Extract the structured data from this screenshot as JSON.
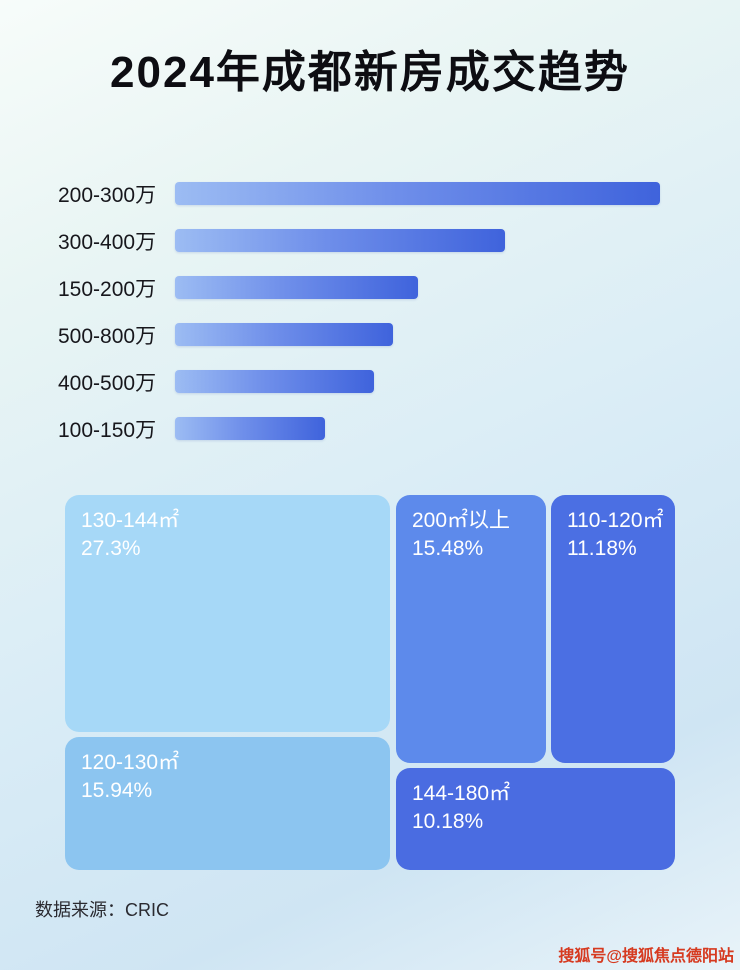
{
  "title": "2024年成都新房成交趋势",
  "chart_data": [
    {
      "type": "bar",
      "orientation": "horizontal",
      "categories": [
        "200-300万",
        "300-400万",
        "150-200万",
        "500-800万",
        "400-500万",
        "100-150万"
      ],
      "values": [
        100,
        68,
        50,
        45,
        41,
        31
      ],
      "value_note": "relative bar lengths (no numeric labels shown)",
      "xlabel": "",
      "ylabel": "",
      "grid": false,
      "legend": false
    },
    {
      "type": "treemap",
      "items": [
        {
          "label": "130-144㎡",
          "percent": "27.3%",
          "value": 27.3,
          "color": "#a6d8f7"
        },
        {
          "label": "120-130㎡",
          "percent": "15.94%",
          "value": 15.94,
          "color": "#8cc5f0"
        },
        {
          "label": "200㎡以上",
          "percent": "15.48%",
          "value": 15.48,
          "color": "#5d8aeb"
        },
        {
          "label": "110-120㎡",
          "percent": "11.18%",
          "value": 11.18,
          "color": "#4b6fe3"
        },
        {
          "label": "144-180㎡",
          "percent": "10.18%",
          "value": 10.18,
          "color": "#4a6ce1"
        }
      ]
    }
  ],
  "footer": {
    "source": "数据来源：CRIC"
  },
  "watermark": "搜狐号@搜狐焦点德阳站",
  "colors": {
    "bar_gradient_start": "#9cbcf3",
    "bar_gradient_end": "#3f63dc",
    "title_color": "#0d0d12",
    "watermark_color": "#d63a20"
  }
}
